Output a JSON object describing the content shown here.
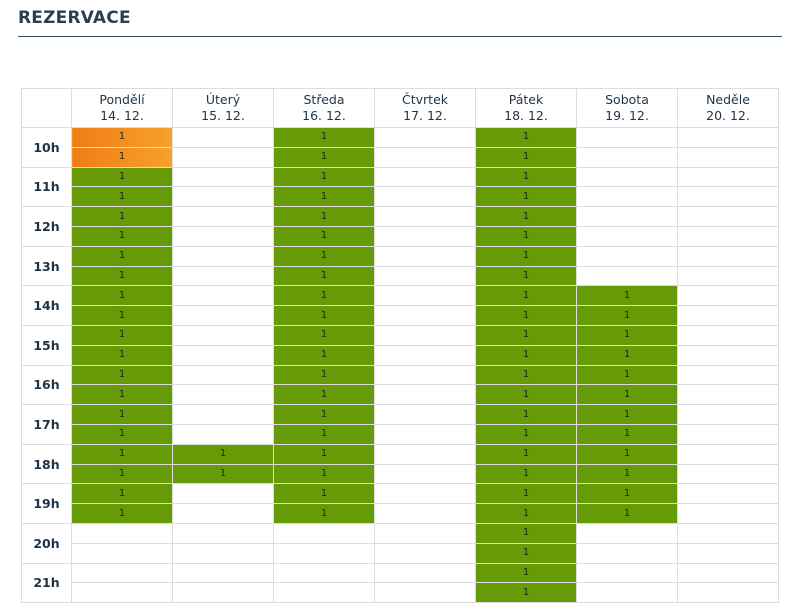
{
  "page": {
    "title": "REZERVACE"
  },
  "days": [
    {
      "name": "Pondělí",
      "date": "14. 12."
    },
    {
      "name": "Úterý",
      "date": "15. 12."
    },
    {
      "name": "Středa",
      "date": "16. 12."
    },
    {
      "name": "Čtvrtek",
      "date": "17. 12."
    },
    {
      "name": "Pátek",
      "date": "18. 12."
    },
    {
      "name": "Sobota",
      "date": "19. 12."
    },
    {
      "name": "Neděle",
      "date": "20. 12."
    }
  ],
  "hours": [
    "10h",
    "11h",
    "12h",
    "13h",
    "14h",
    "15h",
    "16h",
    "17h",
    "18h",
    "19h",
    "20h",
    "21h"
  ],
  "slots": [
    [
      "S",
      "",
      "B",
      "",
      "B",
      "",
      ""
    ],
    [
      "S",
      "",
      "B",
      "",
      "B",
      "",
      ""
    ],
    [
      "B",
      "",
      "B",
      "",
      "B",
      "",
      ""
    ],
    [
      "B",
      "",
      "B",
      "",
      "B",
      "",
      ""
    ],
    [
      "B",
      "",
      "B",
      "",
      "B",
      "",
      ""
    ],
    [
      "B",
      "",
      "B",
      "",
      "B",
      "",
      ""
    ],
    [
      "B",
      "",
      "B",
      "",
      "B",
      "",
      ""
    ],
    [
      "B",
      "",
      "B",
      "",
      "B",
      "",
      ""
    ],
    [
      "B",
      "",
      "B",
      "",
      "B",
      "B",
      ""
    ],
    [
      "B",
      "",
      "B",
      "",
      "B",
      "B",
      ""
    ],
    [
      "B",
      "",
      "B",
      "",
      "B",
      "B",
      ""
    ],
    [
      "B",
      "",
      "B",
      "",
      "B",
      "B",
      ""
    ],
    [
      "B",
      "",
      "B",
      "",
      "B",
      "B",
      ""
    ],
    [
      "B",
      "",
      "B",
      "",
      "B",
      "B",
      ""
    ],
    [
      "B",
      "",
      "B",
      "",
      "B",
      "B",
      ""
    ],
    [
      "B",
      "",
      "B",
      "",
      "B",
      "B",
      ""
    ],
    [
      "B",
      "B",
      "B",
      "",
      "B",
      "B",
      ""
    ],
    [
      "B",
      "B",
      "B",
      "",
      "B",
      "B",
      ""
    ],
    [
      "B",
      "",
      "B",
      "",
      "B",
      "B",
      ""
    ],
    [
      "B",
      "",
      "B",
      "",
      "B",
      "B",
      ""
    ],
    [
      "",
      "",
      "",
      "",
      "B",
      "",
      ""
    ],
    [
      "",
      "",
      "",
      "",
      "B",
      "",
      ""
    ],
    [
      "",
      "",
      "",
      "",
      "B",
      "",
      ""
    ],
    [
      "",
      "",
      "",
      "",
      "B",
      "",
      ""
    ]
  ],
  "slot_legend": {
    "B": "booked",
    "S": "selected"
  },
  "booked_value": "1",
  "colors": {
    "booked": "#669a06",
    "selected_start": "#f07c16",
    "selected_end": "#f5a22b",
    "header_rule": "#34495e"
  }
}
